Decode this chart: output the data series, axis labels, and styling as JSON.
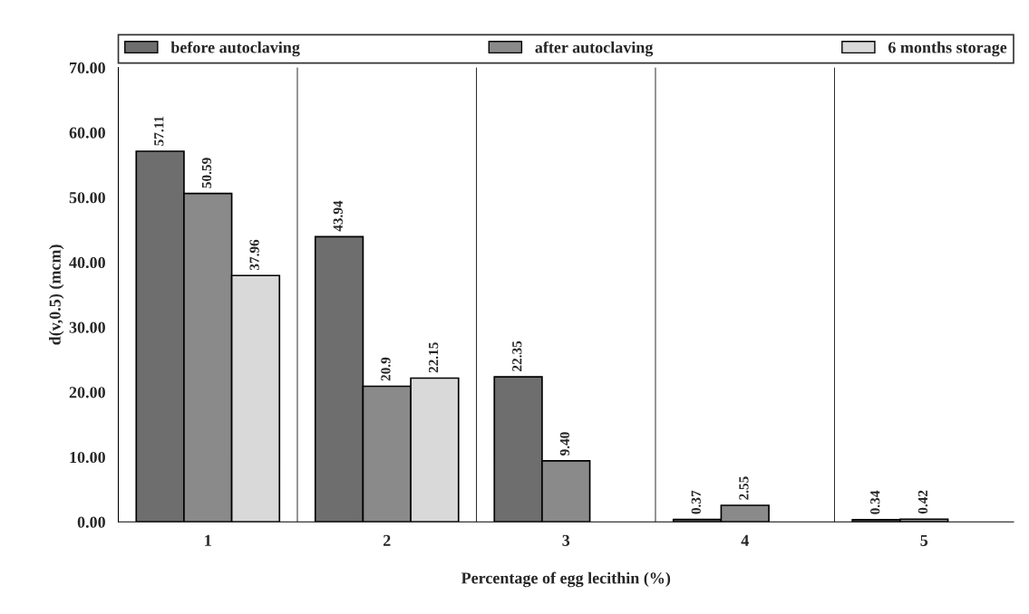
{
  "chart_data": {
    "type": "bar",
    "xlabel": "Percentage of egg lecithin (%)",
    "ylabel": "d(v,0.5) (mcm)",
    "categories": [
      "1",
      "2",
      "3",
      "4",
      "5"
    ],
    "series": [
      {
        "name": "before autoclaving",
        "color": "#6e6e6e",
        "values": [
          57.11,
          43.94,
          22.35,
          0.37,
          0.34
        ],
        "value_labels": [
          "57.11",
          "43.94",
          "22.35",
          "0.37",
          "0.34"
        ]
      },
      {
        "name": "after autoclaving",
        "color": "#8a8a8a",
        "values": [
          50.59,
          20.9,
          9.4,
          2.55,
          0.42
        ],
        "value_labels": [
          "50.59",
          "20.9",
          "9.40",
          "2.55",
          "0.42"
        ]
      },
      {
        "name": "6 months storage",
        "color": "#d9d9d9",
        "values": [
          37.96,
          22.15,
          null,
          null,
          null
        ],
        "value_labels": [
          "37.96",
          "22.15",
          null,
          null,
          null
        ]
      }
    ],
    "ylim": [
      0,
      70
    ],
    "yticks": [
      {
        "value": 0,
        "label": "0.00"
      },
      {
        "value": 10,
        "label": "10.00"
      },
      {
        "value": 20,
        "label": "20.00"
      },
      {
        "value": 30,
        "label": "30.00"
      },
      {
        "value": 40,
        "label": "40.00"
      },
      {
        "value": 50,
        "label": "50.00"
      },
      {
        "value": 60,
        "label": "60.00"
      },
      {
        "value": 70,
        "label": "70.00"
      }
    ],
    "grid": "x",
    "legend": "top"
  }
}
